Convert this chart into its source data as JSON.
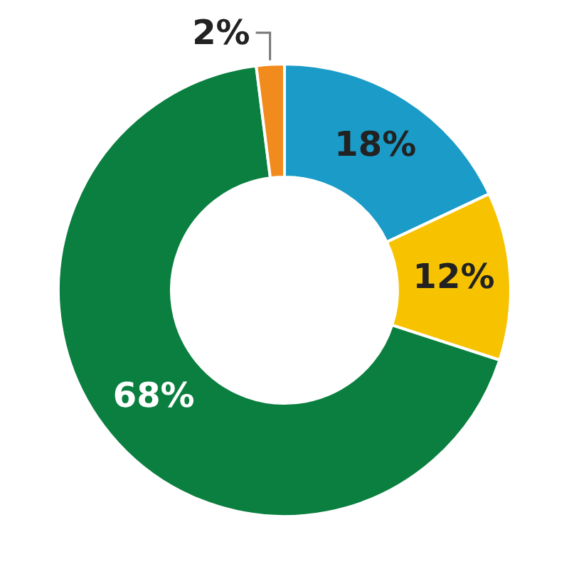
{
  "chart_data": {
    "type": "donut",
    "categories": [
      null,
      null,
      null,
      null
    ],
    "values": [
      18,
      12,
      68,
      2
    ],
    "colors": [
      "#1a9bc8",
      "#f7c300",
      "#0a7f3f",
      "#f28b1e"
    ],
    "value_labels": [
      "18%",
      "12%",
      "68%",
      "2%"
    ],
    "legend": false
  }
}
